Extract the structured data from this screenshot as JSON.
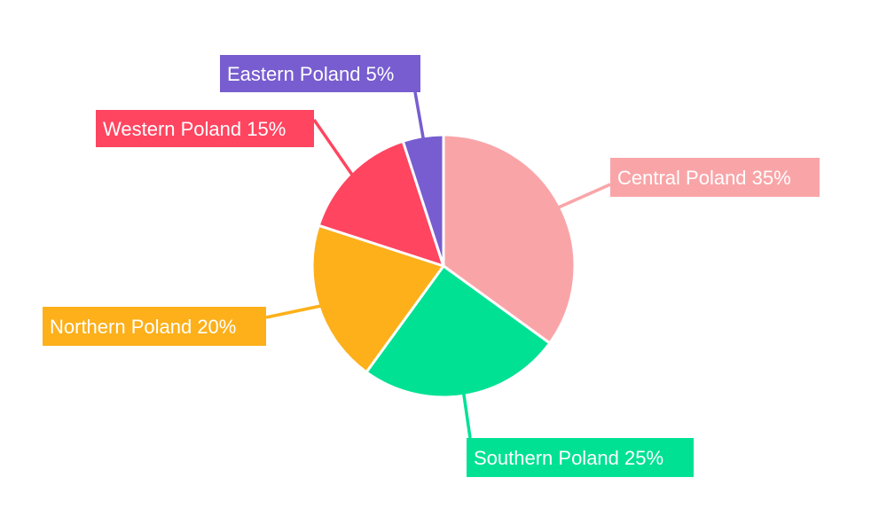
{
  "chart_data": {
    "type": "pie",
    "start_angle_deg": 0,
    "direction": "clockwise",
    "legend": "none",
    "slices": [
      {
        "label": "Central Poland 35%",
        "name": "Central Poland",
        "value": 35,
        "color": "#F9A5A8"
      },
      {
        "label": "Southern Poland 25%",
        "name": "Southern Poland",
        "value": 25,
        "color": "#00E194"
      },
      {
        "label": "Northern Poland 20%",
        "name": "Northern Poland",
        "value": 20,
        "color": "#FDB01A"
      },
      {
        "label": "Western Poland 15%",
        "name": "Western Poland",
        "value": 15,
        "color": "#FF4560"
      },
      {
        "label": "Eastern Poland 5%",
        "name": "Eastern Poland",
        "value": 5,
        "color": "#775DD0"
      }
    ]
  }
}
